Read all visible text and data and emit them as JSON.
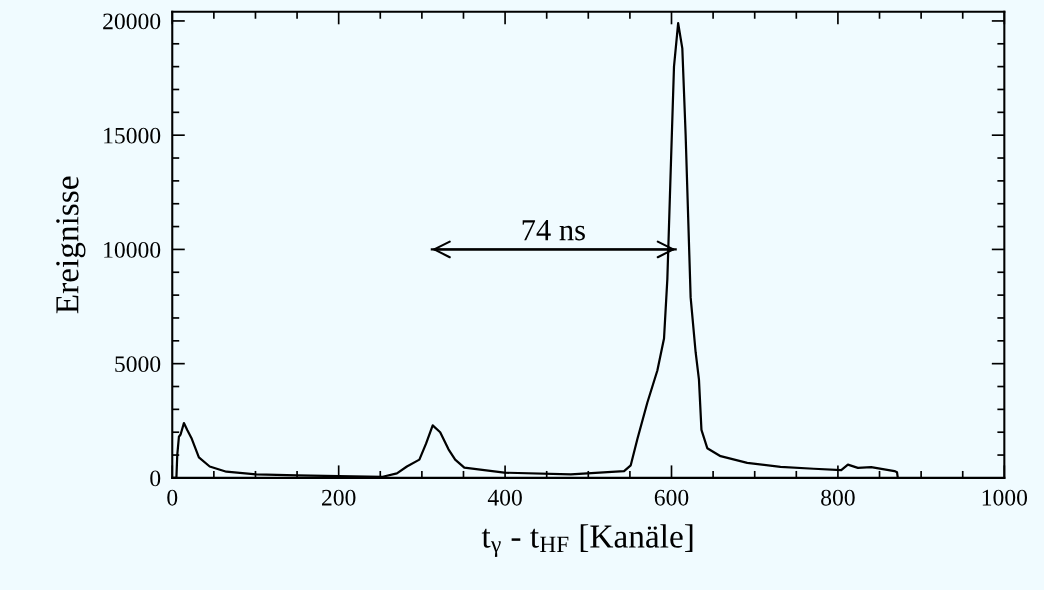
{
  "chart_data": {
    "type": "line",
    "xlabel": "t$_{γ}$ - t$_{HF}$ [Kanäle]",
    "ylabel": "Ereignisse",
    "x": [
      0,
      5,
      6,
      8,
      10,
      14,
      18,
      23,
      32,
      45,
      65,
      101,
      150,
      200,
      253,
      270,
      282,
      297,
      305,
      313,
      322,
      332,
      340,
      351,
      399,
      479,
      543,
      551,
      559,
      571,
      583,
      591,
      595,
      599,
      603,
      608,
      613,
      617,
      623,
      629,
      633,
      636,
      643,
      659,
      691,
      731,
      771,
      804,
      812,
      824,
      840,
      868,
      871,
      872
    ],
    "series": [
      {
        "color": "#000000",
        "values": [
          0,
          0,
          1000,
          1800,
          1900,
          2400,
          2100,
          1750,
          900,
          500,
          270,
          150,
          110,
          80,
          50,
          200,
          500,
          800,
          1500,
          2300,
          2000,
          1250,
          800,
          450,
          230,
          150,
          300,
          550,
          1700,
          3300,
          4700,
          6100,
          8700,
          13400,
          18000,
          19900,
          18800,
          15000,
          7900,
          5500,
          4300,
          2100,
          1300,
          950,
          660,
          480,
          400,
          340,
          580,
          440,
          470,
          300,
          250,
          0
        ]
      },
      {
        "type": "line",
        "color": "#000000",
        "x": [
          312,
          605
        ],
        "values": [
          10000,
          10000
        ]
      }
    ],
    "annotations": [
      {
        "text": "74 ns",
        "x": 458,
        "y": 10000
      }
    ],
    "xlim": [
      0,
      1000
    ],
    "ylim": [
      0,
      20400
    ],
    "xticks": [
      0,
      200,
      400,
      600,
      800,
      1000,
      {
        "value": 50,
        "label": null
      },
      {
        "value": 100,
        "label": null
      },
      {
        "value": 150,
        "label": null
      },
      {
        "value": 250,
        "label": null
      },
      {
        "value": 300,
        "label": null
      },
      {
        "value": 350,
        "label": null
      },
      {
        "value": 450,
        "label": null
      },
      {
        "value": 500,
        "label": null
      },
      {
        "value": 550,
        "label": null
      },
      {
        "value": 650,
        "label": null
      },
      {
        "value": 700,
        "label": null
      },
      {
        "value": 750,
        "label": null
      },
      {
        "value": 850,
        "label": null
      },
      {
        "value": 900,
        "label": null
      },
      {
        "value": 950,
        "label": null
      }
    ],
    "yticks": [
      0,
      5000,
      10000,
      15000,
      20000,
      {
        "value": 1000,
        "label": null
      },
      {
        "value": 2000,
        "label": null
      },
      {
        "value": 3000,
        "label": null
      },
      {
        "value": 4000,
        "label": null
      },
      {
        "value": 6000,
        "label": null
      },
      {
        "value": 7000,
        "label": null
      },
      {
        "value": 8000,
        "label": null
      },
      {
        "value": 9000,
        "label": null
      },
      {
        "value": 11000,
        "label": null
      },
      {
        "value": 12000,
        "label": null
      },
      {
        "value": 13000,
        "label": null
      },
      {
        "value": 14000,
        "label": null
      },
      {
        "value": 16000,
        "label": null
      },
      {
        "value": 17000,
        "label": null
      },
      {
        "value": 18000,
        "label": null
      },
      {
        "value": 19000,
        "label": null
      }
    ],
    "grid": false,
    "legend": false
  }
}
